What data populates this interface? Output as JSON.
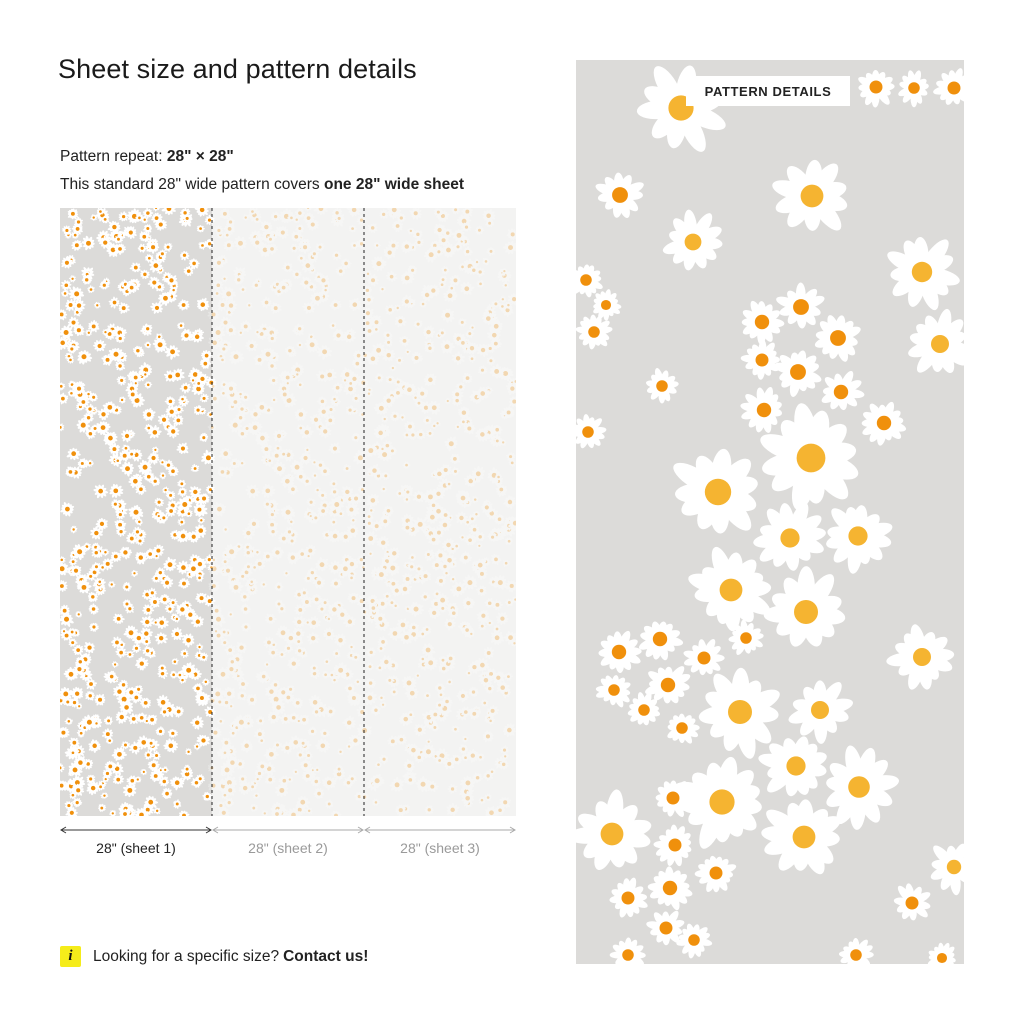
{
  "page": {
    "title": "Sheet size and pattern details",
    "repeat_prefix": "Pattern repeat:",
    "repeat_value": "28\" × 28\"",
    "coverage_prefix": "This standard 28\" wide pattern covers",
    "coverage_value": "one 28\" wide sheet"
  },
  "sheets": [
    {
      "label": "28\" (sheet 1)",
      "active": true
    },
    {
      "label": "28\" (sheet 2)",
      "active": false
    },
    {
      "label": "28\" (sheet 3)",
      "active": false
    }
  ],
  "detail_panel": {
    "badge": "PATTERN DETAILS"
  },
  "info": {
    "icon": "i",
    "text": "Looking for a specific size?",
    "link": "Contact us!"
  },
  "colors": {
    "wallpaper_bg": "#dcdbd9",
    "petal": "#ffffff",
    "center_orange": "#f0900c",
    "center_yellow": "#f5b431",
    "info_icon_bg": "#f5ec1a"
  }
}
